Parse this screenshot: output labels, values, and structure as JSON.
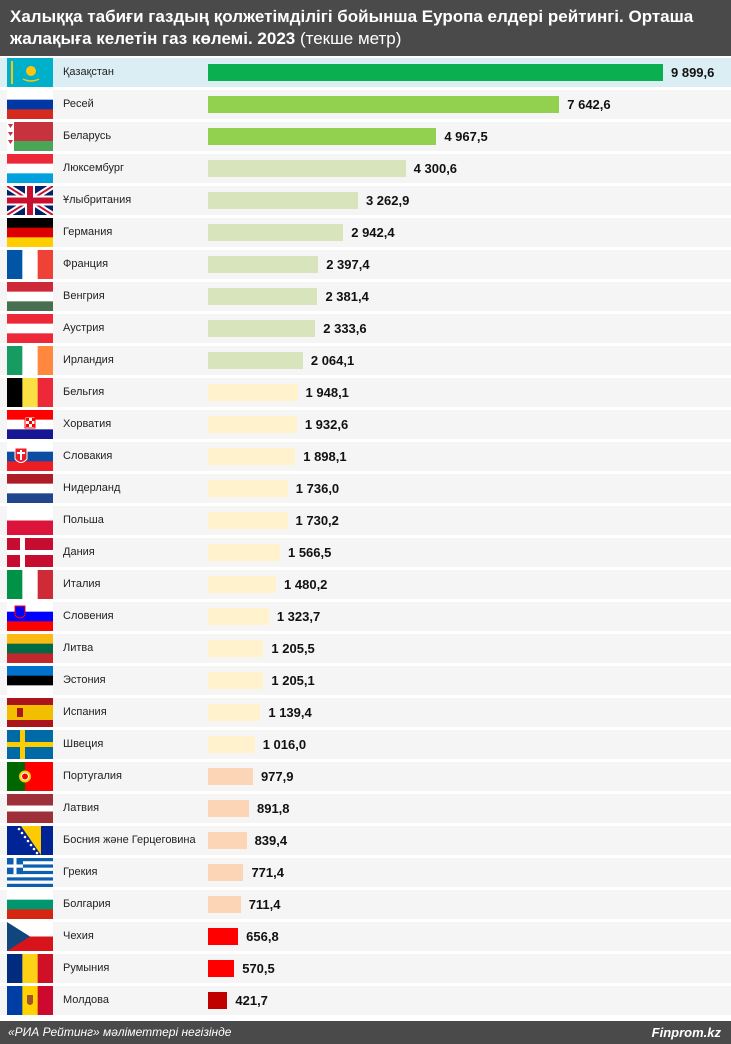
{
  "header": {
    "title_bold": "Халыққа табиғи газдың қолжетімділігі бойынша Еуропа елдері рейтингі. Орташа жалақыға келетін газ көлемі. 2023",
    "title_normal": " (текше метр)"
  },
  "footer": {
    "source": "«РИА Рейтинг» мәліметтері негізінде",
    "brand": "Finprom.kz"
  },
  "colors": {
    "header_bg": "#4a4a4a",
    "tier_top": "#0aaf4f",
    "tier_2": "#92d050",
    "tier_3": "#d8e4bc",
    "tier_4": "#fff2cc",
    "tier_5": "#fbd5b5",
    "tier_6": "#ff0000",
    "tier_7": "#c00000"
  },
  "chart_data": {
    "type": "bar",
    "orientation": "horizontal",
    "xlim": [
      0,
      9899.6
    ],
    "categories": [
      "Қазақстан",
      "Ресей",
      "Беларусь",
      "Люксембург",
      "Ұлыбритания",
      "Германия",
      "Франция",
      "Венгрия",
      "Аустрия",
      "Ирландия",
      "Бельгия",
      "Хорватия",
      "Словакия",
      "Нидерланд",
      "Польша",
      "Дания",
      "Италия",
      "Словения",
      "Литва",
      "Эстония",
      "Испания",
      "Швеция",
      "Португалия",
      "Латвия",
      "Босния және Герцеговина",
      "Грекия",
      "Болгария",
      "Чехия",
      "Румыния",
      "Молдова"
    ],
    "values": [
      9899.6,
      7642.6,
      4967.5,
      4300.6,
      3262.9,
      2942.4,
      2397.4,
      2381.4,
      2333.6,
      2064.1,
      1948.1,
      1932.6,
      1898.1,
      1736.0,
      1730.2,
      1566.5,
      1480.2,
      1323.7,
      1205.5,
      1205.1,
      1139.4,
      1016.0,
      977.9,
      891.8,
      839.4,
      771.4,
      711.4,
      656.8,
      570.5,
      421.7
    ],
    "value_labels": [
      "9 899,6",
      "7 642,6",
      "4 967,5",
      "4 300,6",
      "3 262,9",
      "2 942,4",
      "2 397,4",
      "2 381,4",
      "2 333,6",
      "2 064,1",
      "1 948,1",
      "1 932,6",
      "1 898,1",
      "1 736,0",
      "1 730,2",
      "1 566,5",
      "1 480,2",
      "1 323,7",
      "1 205,5",
      "1 205,1",
      "1 139,4",
      "1 016,0",
      "977,9",
      "891,8",
      "839,4",
      "771,4",
      "711,4",
      "656,8",
      "570,5",
      "421,7"
    ],
    "bar_colors": [
      "#0aaf4f",
      "#92d050",
      "#92d050",
      "#d8e4bc",
      "#d8e4bc",
      "#d8e4bc",
      "#d8e4bc",
      "#d8e4bc",
      "#d8e4bc",
      "#d8e4bc",
      "#fff2cc",
      "#fff2cc",
      "#fff2cc",
      "#fff2cc",
      "#fff2cc",
      "#fff2cc",
      "#fff2cc",
      "#fff2cc",
      "#fff2cc",
      "#fff2cc",
      "#fff2cc",
      "#fff2cc",
      "#fbd5b5",
      "#fbd5b5",
      "#fbd5b5",
      "#fbd5b5",
      "#fbd5b5",
      "#ff0000",
      "#ff0000",
      "#c00000"
    ],
    "flags": [
      "kz",
      "ru",
      "by",
      "lu",
      "gb",
      "de",
      "fr",
      "hu",
      "at",
      "ie",
      "be",
      "hr",
      "sk",
      "nl",
      "pl",
      "dk",
      "it",
      "si",
      "lt",
      "ee",
      "es",
      "se",
      "pt",
      "lv",
      "ba",
      "gr",
      "bg",
      "cz",
      "ro",
      "md"
    ],
    "highlighted": "Қазақстан",
    "grid": false,
    "legend": "none"
  }
}
